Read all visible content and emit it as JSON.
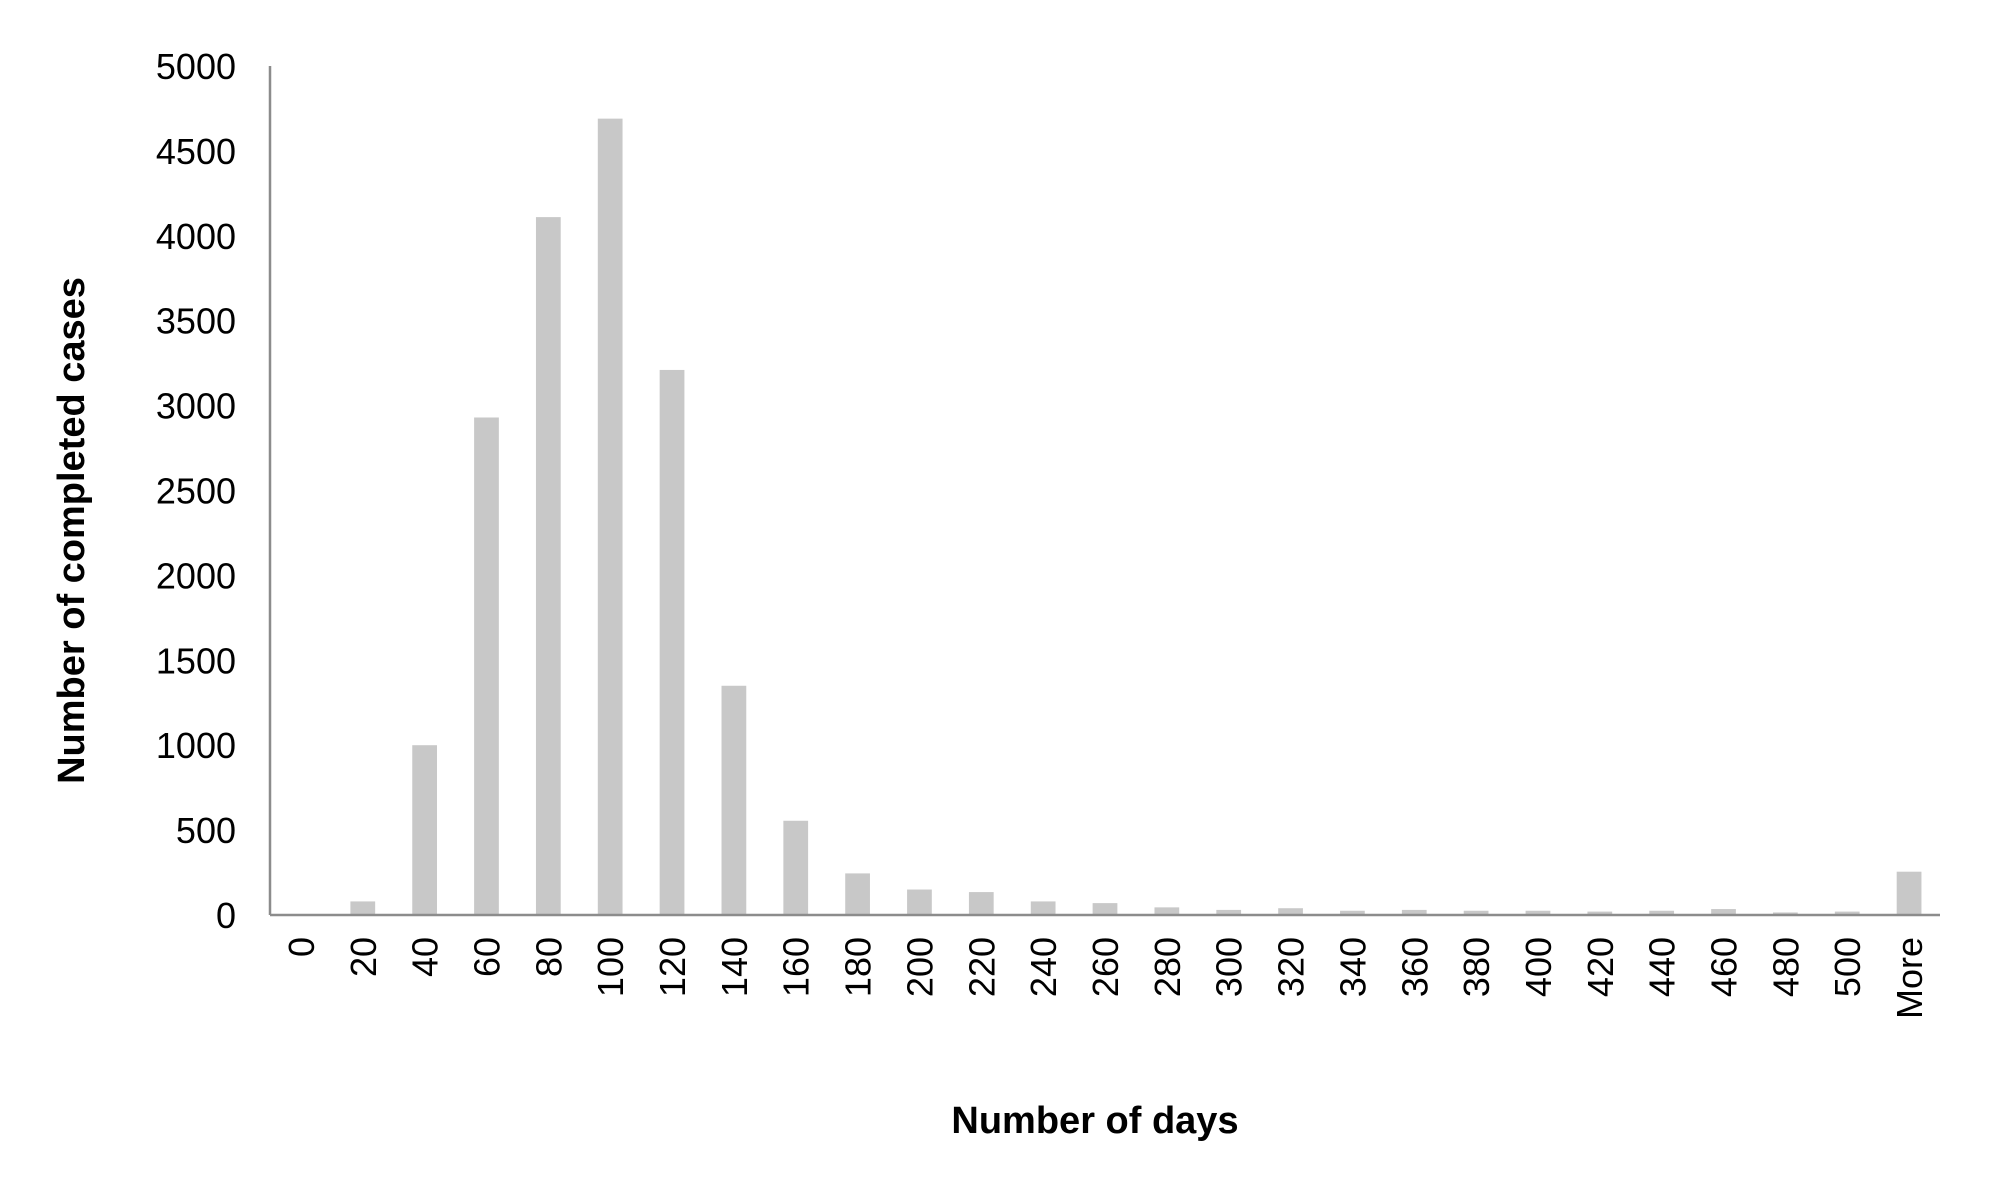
{
  "chart_data": {
    "type": "bar",
    "title": "",
    "xlabel": "Number of days",
    "ylabel": "Number of completed cases",
    "categories": [
      "0",
      "20",
      "40",
      "60",
      "80",
      "100",
      "120",
      "140",
      "160",
      "180",
      "200",
      "220",
      "240",
      "260",
      "280",
      "300",
      "320",
      "340",
      "360",
      "380",
      "400",
      "420",
      "440",
      "460",
      "480",
      "500",
      "More"
    ],
    "values": [
      0,
      80,
      1000,
      2930,
      4110,
      4690,
      3210,
      1350,
      555,
      245,
      150,
      135,
      80,
      70,
      45,
      30,
      40,
      25,
      30,
      25,
      25,
      20,
      25,
      35,
      15,
      20,
      255
    ],
    "ylim": [
      0,
      5000
    ],
    "yticks": [
      "0",
      "500",
      "1000",
      "1500",
      "2000",
      "2500",
      "3000",
      "3500",
      "4000",
      "4500",
      "5000"
    ],
    "grid": false,
    "legend": "none",
    "colors": {
      "bar": "#c8c8c8",
      "axis": "#8c8c8c",
      "text": "#000000"
    }
  }
}
